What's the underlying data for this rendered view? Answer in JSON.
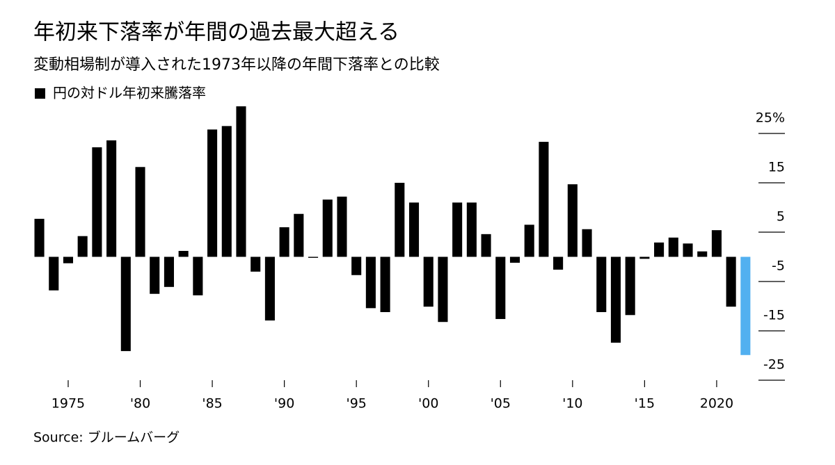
{
  "chart_data": {
    "type": "bar",
    "title": "年初来下落率が年間の過去最大超える",
    "subtitle": "変動相場制が導入された1973年以降の年間下落率との比較",
    "source": "Source: ブルームバーグ",
    "x": [
      1973,
      1974,
      1975,
      1976,
      1977,
      1978,
      1979,
      1980,
      1981,
      1982,
      1983,
      1984,
      1985,
      1986,
      1987,
      1988,
      1989,
      1990,
      1991,
      1992,
      1993,
      1994,
      1995,
      1996,
      1997,
      1998,
      1999,
      2000,
      2001,
      2002,
      2003,
      2004,
      2005,
      2006,
      2007,
      2008,
      2009,
      2010,
      2011,
      2012,
      2013,
      2014,
      2015,
      2016,
      2017,
      2018,
      2019,
      2020,
      2021,
      2022
    ],
    "series": [
      {
        "name": "円の対ドル年初来騰落率",
        "color": "#000000",
        "values": [
          7.7,
          -6.8,
          -1.3,
          4.2,
          22.2,
          23.6,
          -19.1,
          18.2,
          -7.5,
          -6.1,
          1.2,
          -7.8,
          25.8,
          26.5,
          30.5,
          -3.0,
          -12.9,
          6.0,
          8.7,
          -0.2,
          11.6,
          12.2,
          -3.7,
          -10.4,
          -11.2,
          15.0,
          11.0,
          -10.1,
          -13.2,
          11.0,
          11.0,
          4.6,
          -12.6,
          -1.2,
          6.5,
          23.3,
          -2.6,
          14.7,
          5.6,
          -11.2,
          -17.4,
          -11.8,
          -0.4,
          2.9,
          3.9,
          2.7,
          1.1,
          5.4,
          -10.1,
          -19.9
        ],
        "colors": [
          "#000000",
          "#000000",
          "#000000",
          "#000000",
          "#000000",
          "#000000",
          "#000000",
          "#000000",
          "#000000",
          "#000000",
          "#000000",
          "#000000",
          "#000000",
          "#000000",
          "#000000",
          "#000000",
          "#000000",
          "#000000",
          "#000000",
          "#000000",
          "#000000",
          "#000000",
          "#000000",
          "#000000",
          "#000000",
          "#000000",
          "#000000",
          "#000000",
          "#000000",
          "#000000",
          "#000000",
          "#000000",
          "#000000",
          "#000000",
          "#000000",
          "#000000",
          "#000000",
          "#000000",
          "#000000",
          "#000000",
          "#000000",
          "#000000",
          "#000000",
          "#000000",
          "#000000",
          "#000000",
          "#000000",
          "#000000",
          "#000000",
          "#52b0f0"
        ]
      }
    ],
    "xlim": [
      1972.5,
      2022.5
    ],
    "xticks": [
      1975,
      {
        "value": 1980,
        "label": "'80"
      },
      {
        "value": 1985,
        "label": "'85"
      },
      {
        "value": 1990,
        "label": "'90"
      },
      {
        "value": 1995,
        "label": "'95"
      },
      {
        "value": 2000,
        "label": "'00"
      },
      {
        "value": 2005,
        "label": "'05"
      },
      {
        "value": 2010,
        "label": "'10"
      },
      {
        "value": 2015,
        "label": "'15"
      },
      2020
    ],
    "ylim": [
      -27,
      31
    ],
    "yticks": [
      {
        "value": 25,
        "label": "25%"
      },
      15,
      5,
      -5,
      -15,
      -25
    ]
  }
}
